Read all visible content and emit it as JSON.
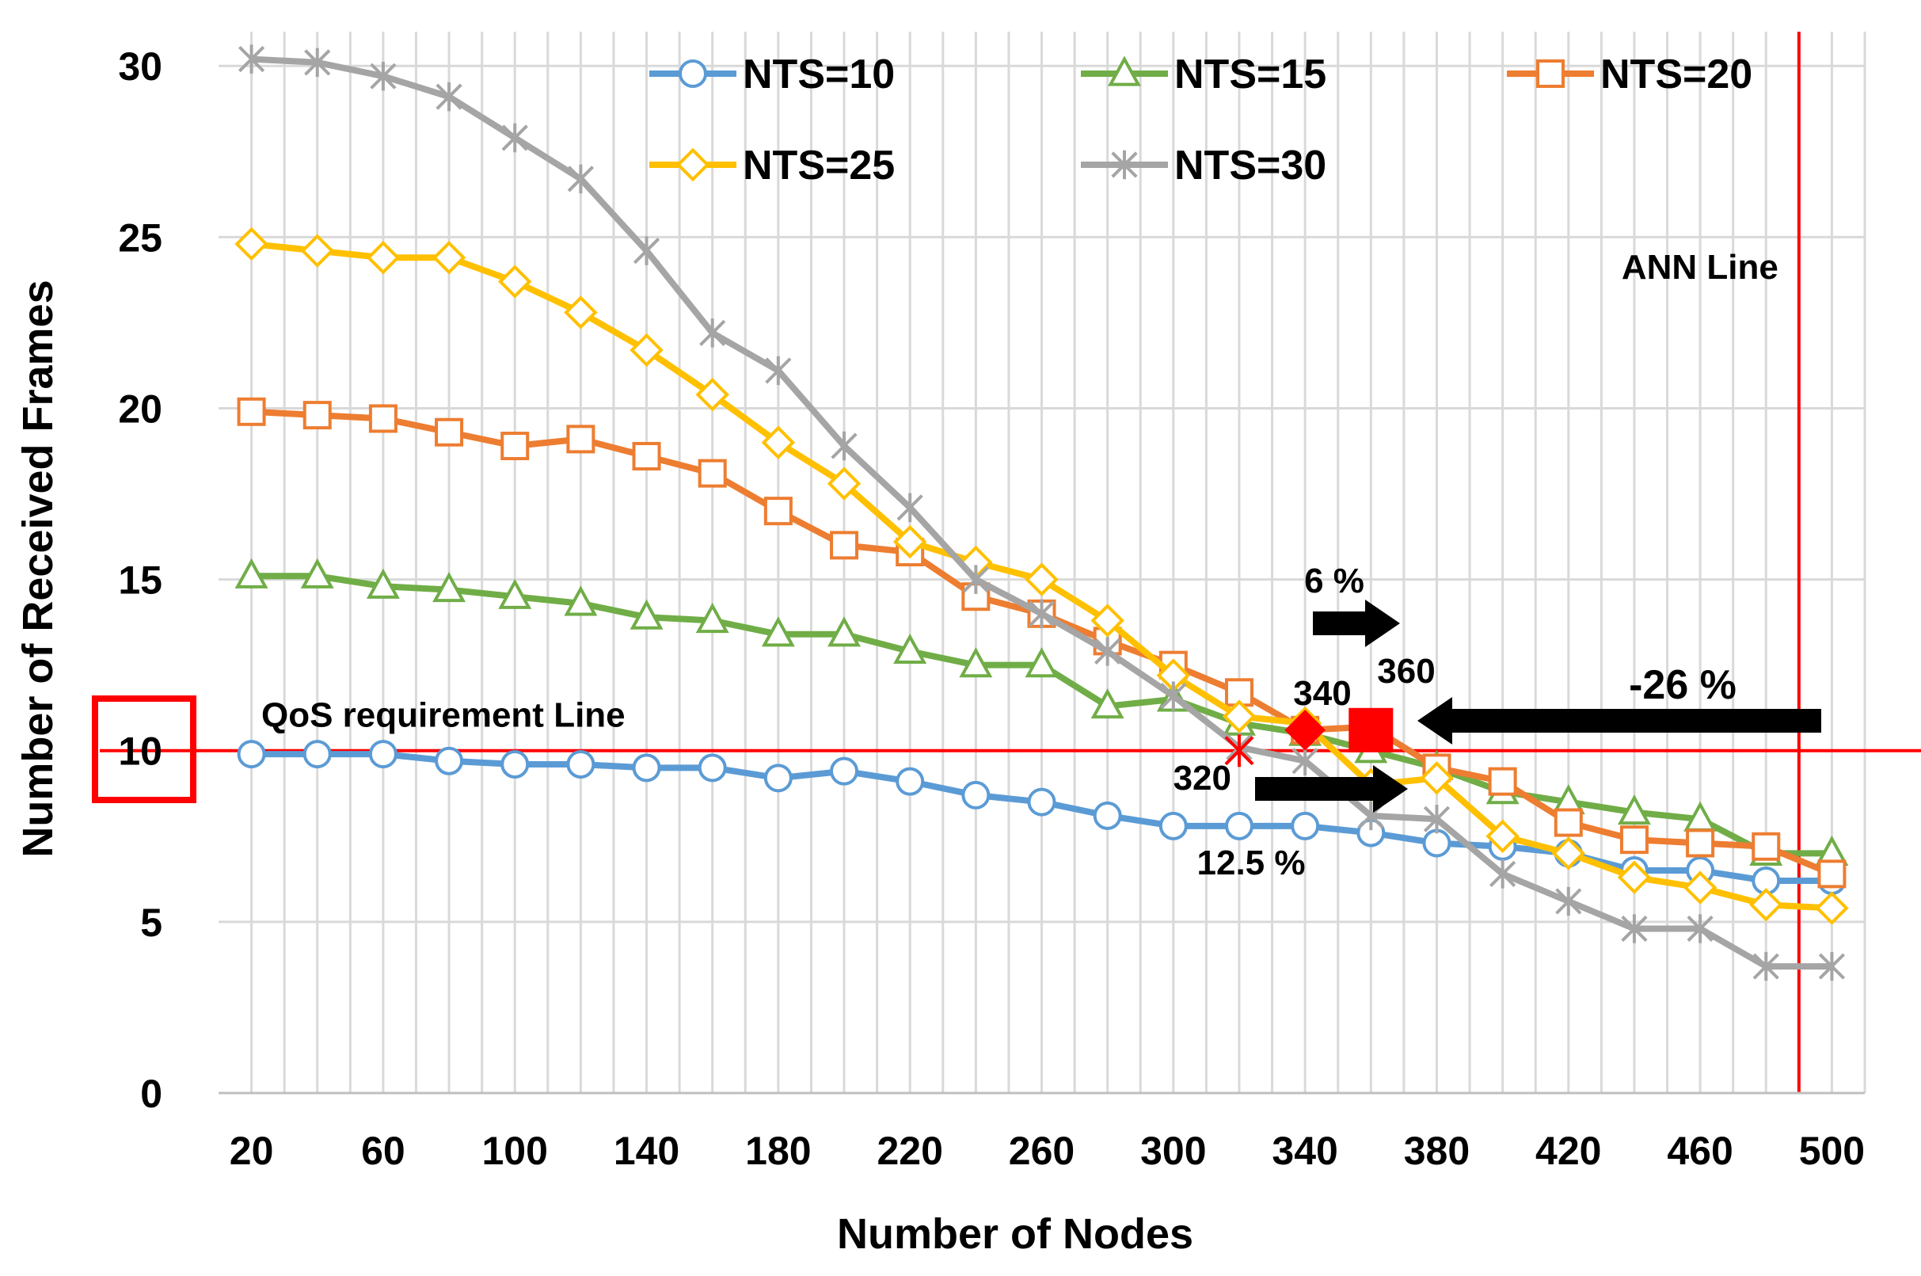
{
  "chart_data": {
    "type": "line",
    "title": "",
    "xlabel": "Number of Nodes",
    "ylabel": "Number of Received Frames",
    "xlim": [
      10,
      510
    ],
    "ylim": [
      0,
      31
    ],
    "x_ticks": [
      20,
      60,
      100,
      140,
      180,
      220,
      260,
      300,
      340,
      380,
      420,
      460,
      500
    ],
    "y_ticks": [
      0,
      5,
      10,
      15,
      20,
      25,
      30
    ],
    "grid": true,
    "legend_position": "top",
    "x": [
      20,
      40,
      60,
      80,
      100,
      120,
      140,
      160,
      180,
      200,
      220,
      240,
      260,
      280,
      300,
      320,
      340,
      360,
      380,
      400,
      420,
      440,
      460,
      480,
      500
    ],
    "series": [
      {
        "name": "NTS=10",
        "color": "#5B9BD5",
        "marker": "circle",
        "values": [
          9.9,
          9.9,
          9.9,
          9.7,
          9.6,
          9.6,
          9.5,
          9.5,
          9.2,
          9.4,
          9.1,
          8.7,
          8.5,
          8.1,
          7.8,
          7.8,
          7.8,
          7.6,
          7.3,
          7.2,
          7.0,
          6.5,
          6.5,
          6.2,
          6.2
        ]
      },
      {
        "name": "NTS=15",
        "color": "#70AD47",
        "marker": "triangle",
        "values": [
          15.1,
          15.1,
          14.8,
          14.7,
          14.5,
          14.3,
          13.9,
          13.8,
          13.4,
          13.4,
          12.9,
          12.5,
          12.5,
          11.3,
          11.5,
          10.8,
          10.5,
          10.0,
          9.5,
          8.8,
          8.5,
          8.2,
          8.0,
          7.0,
          7.0
        ]
      },
      {
        "name": "NTS=20",
        "color": "#ED7D31",
        "marker": "square",
        "values": [
          19.9,
          19.8,
          19.7,
          19.3,
          18.9,
          19.1,
          18.6,
          18.1,
          17.0,
          16.0,
          15.8,
          14.5,
          14.0,
          13.2,
          12.5,
          11.7,
          10.6,
          10.7,
          9.5,
          9.1,
          7.9,
          7.4,
          7.3,
          7.2,
          6.4
        ]
      },
      {
        "name": "NTS=25",
        "color": "#FFC000",
        "marker": "diamond",
        "values": [
          24.8,
          24.6,
          24.4,
          24.4,
          23.7,
          22.8,
          21.7,
          20.4,
          19.0,
          17.8,
          16.1,
          15.5,
          15.0,
          13.8,
          12.2,
          11.0,
          10.8,
          9.0,
          9.2,
          7.5,
          7.0,
          6.3,
          6.0,
          5.5,
          5.4
        ]
      },
      {
        "name": "NTS=30",
        "color": "#A5A5A5",
        "marker": "star",
        "values": [
          30.2,
          30.1,
          29.7,
          29.1,
          27.9,
          26.7,
          24.6,
          22.2,
          21.1,
          18.9,
          17.1,
          15.0,
          14.0,
          12.9,
          11.6,
          10.1,
          9.7,
          8.1,
          8.0,
          6.4,
          5.6,
          4.8,
          4.8,
          3.7,
          3.7
        ]
      }
    ],
    "reference_lines": [
      {
        "label": "QoS requirement Line",
        "axis": "y",
        "value": 10,
        "color": "#FF0000"
      },
      {
        "label": "ANN Line",
        "axis": "x",
        "value": 490,
        "color": "#FF0000"
      }
    ],
    "highlight_points": [
      {
        "label": "320",
        "x": 320,
        "y": 10.0,
        "marker": "star",
        "color": "#FF0000"
      },
      {
        "label": "340",
        "x": 340,
        "y": 10.6,
        "marker": "diamond",
        "color": "#FF0000"
      },
      {
        "label": "360",
        "x": 360,
        "y": 10.6,
        "marker": "square",
        "color": "#FF0000"
      }
    ],
    "annotations": {
      "pct_6": "6 %",
      "pct_12_5": "12.5 %",
      "pct_minus_26": "-26 %",
      "qos_box_label": "10"
    }
  }
}
